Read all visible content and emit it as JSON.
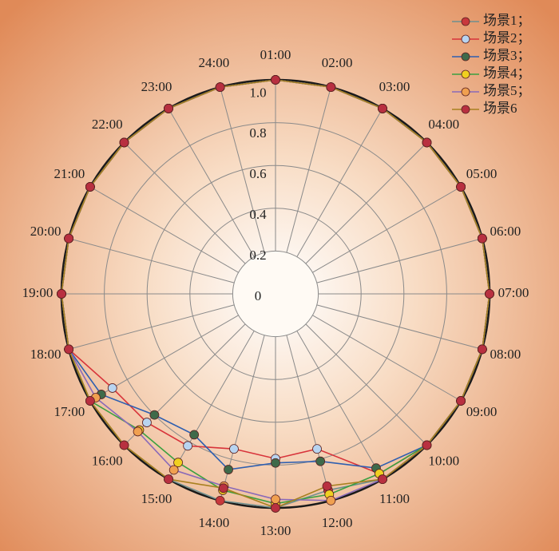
{
  "chart_data": {
    "type": "radar",
    "categories": [
      "01:00",
      "02:00",
      "03:00",
      "04:00",
      "05:00",
      "06:00",
      "07:00",
      "08:00",
      "09:00",
      "10:00",
      "11:00",
      "12:00",
      "13:00",
      "14:00",
      "15:00",
      "16:00",
      "17:00",
      "18:00",
      "19:00",
      "20:00",
      "21:00",
      "22:00",
      "23:00",
      "24:00"
    ],
    "ylim": [
      0,
      1
    ],
    "yticks": [
      0,
      0.2,
      0.4,
      0.6,
      0.8,
      {
        "value": 1,
        "label": "1.0"
      }
    ],
    "grid": true,
    "legend": "upper right",
    "series": [
      {
        "name": "场景1；",
        "color": "#6f8f8f",
        "marker_color": "#c8383c",
        "values": [
          1,
          1,
          1,
          1,
          1,
          1,
          1,
          1,
          1,
          1,
          1,
          0.95,
          1,
          1,
          1,
          1,
          1,
          1,
          1,
          1,
          1,
          1,
          1,
          1
        ]
      },
      {
        "name": "场景2；",
        "color": "#d8333a",
        "marker_color": "#b8d4f0",
        "values": [
          1,
          1,
          1,
          1,
          1,
          1,
          1,
          1,
          1,
          1,
          0.97,
          0.75,
          0.77,
          0.75,
          0.82,
          0.85,
          0.88,
          1,
          1,
          1,
          1,
          1,
          1,
          1
        ]
      },
      {
        "name": "场景3；",
        "color": "#2f5fb0",
        "marker_color": "#3f6a4a",
        "values": [
          1,
          1,
          1,
          1,
          1,
          1,
          1,
          1,
          1,
          1,
          0.94,
          0.81,
          0.79,
          0.85,
          0.76,
          0.8,
          0.94,
          1,
          1,
          1,
          1,
          1,
          1,
          1
        ]
      },
      {
        "name": "场景4；",
        "color": "#3aa040",
        "marker_color": "#f0d020",
        "values": [
          1,
          1,
          1,
          1,
          1,
          1,
          1,
          1,
          1,
          1,
          0.97,
          0.97,
          0.98,
          0.95,
          0.91,
          0.9,
          1,
          1,
          1,
          1,
          1,
          1,
          1,
          1
        ]
      },
      {
        "name": "场景5；",
        "color": "#8a6ab8",
        "marker_color": "#f0a050",
        "values": [
          1,
          1,
          1,
          1,
          1,
          1,
          1,
          1,
          1,
          1,
          1,
          1,
          0.96,
          0.93,
          0.95,
          0.91,
          0.97,
          1,
          1,
          1,
          1,
          1,
          1,
          1
        ]
      },
      {
        "name": "场景6",
        "color": "#a88020",
        "marker_color": "#b83040",
        "values": [
          1,
          1,
          1,
          1,
          1,
          1,
          1,
          1,
          1,
          1,
          1,
          0.93,
          1,
          0.94,
          1,
          1,
          1,
          1,
          1,
          1,
          1,
          1,
          1,
          1
        ]
      }
    ]
  }
}
